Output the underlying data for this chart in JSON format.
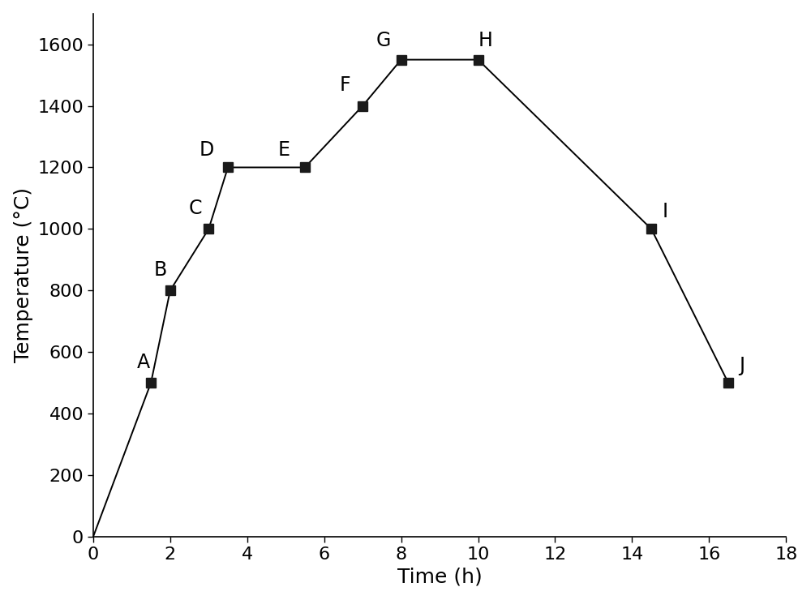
{
  "x": [
    0,
    1.5,
    2.0,
    3.0,
    3.5,
    5.5,
    7.0,
    8.0,
    10.0,
    14.5,
    16.5
  ],
  "y": [
    0,
    500,
    800,
    1000,
    1200,
    1200,
    1400,
    1550,
    1550,
    1000,
    500
  ],
  "point_labels": [
    "A",
    "B",
    "C",
    "D",
    "E",
    "F",
    "G",
    "H",
    "I",
    "J"
  ],
  "point_indices": [
    1,
    2,
    3,
    4,
    5,
    6,
    7,
    8,
    9,
    10
  ],
  "label_x_offsets": [
    -0.2,
    -0.25,
    -0.35,
    -0.55,
    -0.55,
    -0.45,
    -0.45,
    0.2,
    0.35,
    0.35
  ],
  "label_y_offsets": [
    35,
    35,
    35,
    25,
    25,
    35,
    30,
    30,
    25,
    25
  ],
  "line_color": "#000000",
  "marker_color": "#1a1a1a",
  "marker_size": 9,
  "line_width": 1.4,
  "xlabel": "Time (h)",
  "ylabel": "Temperature (°C)",
  "xlim": [
    0,
    18
  ],
  "ylim": [
    0,
    1700
  ],
  "xticks": [
    0,
    2,
    4,
    6,
    8,
    10,
    12,
    14,
    16,
    18
  ],
  "yticks": [
    0,
    200,
    400,
    600,
    800,
    1000,
    1200,
    1400,
    1600
  ],
  "tick_fontsize": 16,
  "label_fontsize": 18,
  "point_label_fontsize": 17,
  "background_color": "#ffffff",
  "spine_linewidth": 1.2
}
